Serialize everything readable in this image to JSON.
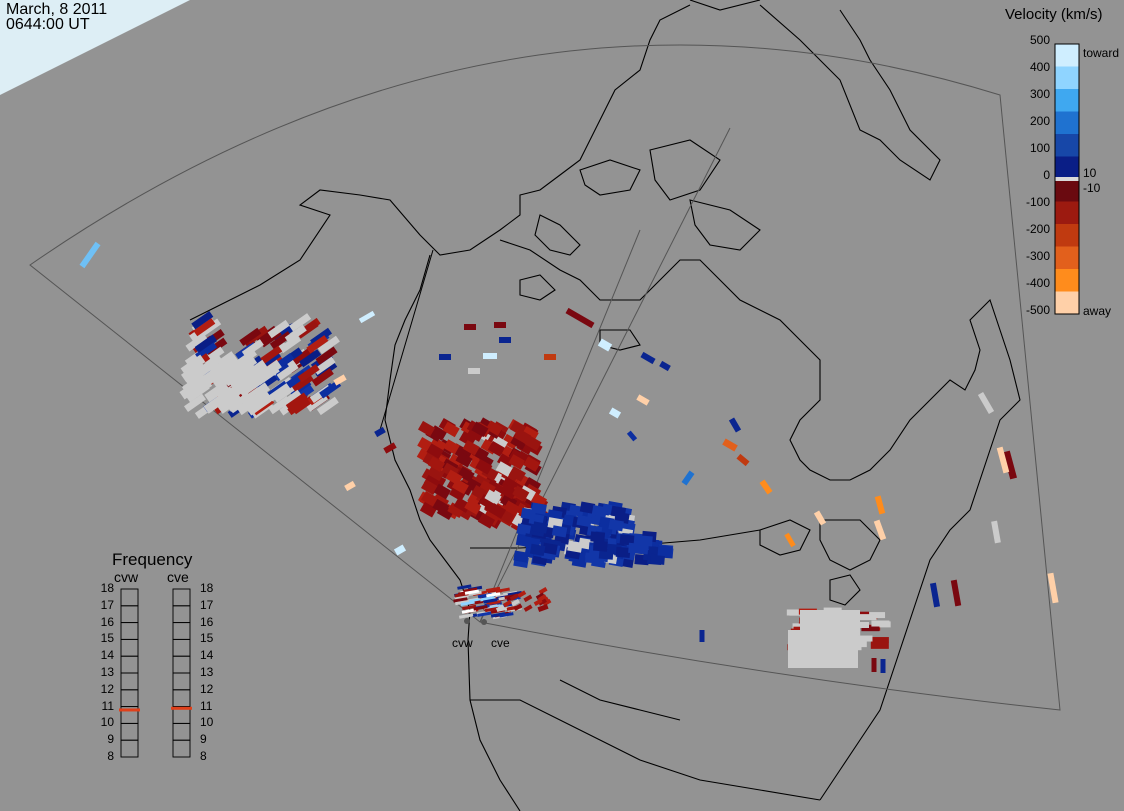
{
  "header": {
    "date": "March, 8 2011",
    "time": "0644:00 UT"
  },
  "velocity_scale": {
    "title": "Velocity (km/s)",
    "ticks": [
      "500",
      "400",
      "300",
      "200",
      "100",
      "0",
      "-100",
      "-200",
      "-300",
      "-400",
      "-500"
    ],
    "labels": {
      "toward": "toward",
      "away": "away",
      "pos_threshold": "10",
      "neg_threshold": "-10"
    },
    "colors_top_to_bottom": [
      "#cfeeff",
      "#8fd4ff",
      "#3fa8f0",
      "#1f72d0",
      "#1747a8",
      "#0a1e86",
      "#6a0a10",
      "#9c1a10",
      "#c03a10",
      "#e2601c",
      "#ff8c1c",
      "#ffd0a8"
    ]
  },
  "frequency": {
    "title": "Frequency",
    "stations": [
      "cvw",
      "cve"
    ],
    "scale": [
      "18",
      "17",
      "16",
      "15",
      "14",
      "13",
      "12",
      "11",
      "10",
      "9",
      "8"
    ],
    "cvw_mhz": 10.8,
    "cve_mhz": 10.9,
    "marker_color": "#e0401a"
  },
  "radar_sites": [
    "cvw",
    "cve"
  ],
  "colors": {
    "background": "#939393",
    "scatter_gray": "#cbcbcb",
    "coast": "#000000"
  }
}
